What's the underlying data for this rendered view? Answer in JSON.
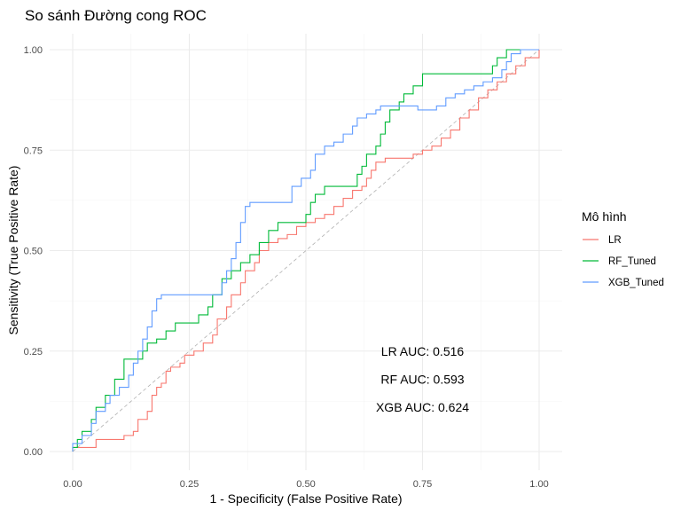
{
  "chart_data": {
    "type": "line",
    "title": "So sánh Đường cong ROC",
    "xlabel": "1 - Specificity (False Positive Rate)",
    "ylabel": "Sensitivity (True Positive Rate)",
    "xlim": [
      0,
      1
    ],
    "ylim": [
      0,
      1
    ],
    "x_ticks": [
      "0.00",
      "0.25",
      "0.50",
      "0.75",
      "1.00"
    ],
    "y_ticks": [
      "0.00",
      "0.25",
      "0.50",
      "0.75",
      "1.00"
    ],
    "grid": true,
    "legend": {
      "title": "Mô hình",
      "position": "right"
    },
    "reference_line": {
      "from": [
        0,
        0
      ],
      "to": [
        1,
        1
      ],
      "style": "dashed"
    },
    "series": [
      {
        "name": "LR",
        "color": "#F8766D",
        "points": [
          [
            0,
            0
          ],
          [
            0,
            0.01
          ],
          [
            0.05,
            0.01
          ],
          [
            0.05,
            0.03
          ],
          [
            0.1,
            0.03
          ],
          [
            0.11,
            0.04
          ],
          [
            0.13,
            0.05
          ],
          [
            0.14,
            0.08
          ],
          [
            0.16,
            0.1
          ],
          [
            0.17,
            0.14
          ],
          [
            0.18,
            0.16
          ],
          [
            0.19,
            0.17
          ],
          [
            0.2,
            0.2
          ],
          [
            0.21,
            0.21
          ],
          [
            0.23,
            0.22
          ],
          [
            0.24,
            0.24
          ],
          [
            0.26,
            0.25
          ],
          [
            0.28,
            0.27
          ],
          [
            0.3,
            0.29
          ],
          [
            0.31,
            0.33
          ],
          [
            0.33,
            0.36
          ],
          [
            0.34,
            0.39
          ],
          [
            0.36,
            0.42
          ],
          [
            0.37,
            0.45
          ],
          [
            0.39,
            0.47
          ],
          [
            0.4,
            0.5
          ],
          [
            0.42,
            0.52
          ],
          [
            0.44,
            0.53
          ],
          [
            0.46,
            0.54
          ],
          [
            0.48,
            0.56
          ],
          [
            0.5,
            0.57
          ],
          [
            0.52,
            0.58
          ],
          [
            0.54,
            0.59
          ],
          [
            0.56,
            0.61
          ],
          [
            0.58,
            0.63
          ],
          [
            0.6,
            0.65
          ],
          [
            0.62,
            0.66
          ],
          [
            0.63,
            0.68
          ],
          [
            0.64,
            0.7
          ],
          [
            0.65,
            0.72
          ],
          [
            0.67,
            0.73
          ],
          [
            0.7,
            0.73
          ],
          [
            0.73,
            0.74
          ],
          [
            0.75,
            0.75
          ],
          [
            0.77,
            0.76
          ],
          [
            0.79,
            0.78
          ],
          [
            0.81,
            0.8
          ],
          [
            0.83,
            0.83
          ],
          [
            0.85,
            0.85
          ],
          [
            0.87,
            0.88
          ],
          [
            0.89,
            0.9
          ],
          [
            0.91,
            0.92
          ],
          [
            0.93,
            0.94
          ],
          [
            0.95,
            0.96
          ],
          [
            0.97,
            0.98
          ],
          [
            1,
            0.99
          ],
          [
            1,
            1
          ]
        ]
      },
      {
        "name": "RF_Tuned",
        "color": "#00BA38",
        "points": [
          [
            0,
            0
          ],
          [
            0,
            0.01
          ],
          [
            0.01,
            0.03
          ],
          [
            0.02,
            0.05
          ],
          [
            0.04,
            0.08
          ],
          [
            0.05,
            0.11
          ],
          [
            0.07,
            0.14
          ],
          [
            0.09,
            0.18
          ],
          [
            0.11,
            0.23
          ],
          [
            0.13,
            0.23
          ],
          [
            0.15,
            0.25
          ],
          [
            0.16,
            0.27
          ],
          [
            0.18,
            0.28
          ],
          [
            0.2,
            0.3
          ],
          [
            0.22,
            0.32
          ],
          [
            0.25,
            0.32
          ],
          [
            0.27,
            0.34
          ],
          [
            0.29,
            0.36
          ],
          [
            0.3,
            0.39
          ],
          [
            0.32,
            0.43
          ],
          [
            0.34,
            0.45
          ],
          [
            0.36,
            0.47
          ],
          [
            0.38,
            0.49
          ],
          [
            0.4,
            0.52
          ],
          [
            0.42,
            0.55
          ],
          [
            0.44,
            0.57
          ],
          [
            0.48,
            0.57
          ],
          [
            0.5,
            0.59
          ],
          [
            0.51,
            0.62
          ],
          [
            0.52,
            0.64
          ],
          [
            0.54,
            0.66
          ],
          [
            0.6,
            0.66
          ],
          [
            0.61,
            0.69
          ],
          [
            0.62,
            0.71
          ],
          [
            0.63,
            0.74
          ],
          [
            0.65,
            0.76
          ],
          [
            0.66,
            0.79
          ],
          [
            0.67,
            0.82
          ],
          [
            0.68,
            0.85
          ],
          [
            0.7,
            0.87
          ],
          [
            0.71,
            0.89
          ],
          [
            0.73,
            0.91
          ],
          [
            0.75,
            0.94
          ],
          [
            0.89,
            0.94
          ],
          [
            0.9,
            0.96
          ],
          [
            0.91,
            0.98
          ],
          [
            0.93,
            1
          ],
          [
            1,
            1
          ]
        ]
      },
      {
        "name": "XGB_Tuned",
        "color": "#619CFF",
        "points": [
          [
            0,
            0
          ],
          [
            0,
            0.02
          ],
          [
            0.02,
            0.04
          ],
          [
            0.04,
            0.07
          ],
          [
            0.05,
            0.1
          ],
          [
            0.07,
            0.12
          ],
          [
            0.08,
            0.14
          ],
          [
            0.1,
            0.16
          ],
          [
            0.12,
            0.19
          ],
          [
            0.13,
            0.22
          ],
          [
            0.14,
            0.25
          ],
          [
            0.15,
            0.28
          ],
          [
            0.16,
            0.31
          ],
          [
            0.17,
            0.35
          ],
          [
            0.18,
            0.38
          ],
          [
            0.19,
            0.39
          ],
          [
            0.3,
            0.39
          ],
          [
            0.32,
            0.42
          ],
          [
            0.33,
            0.45
          ],
          [
            0.34,
            0.48
          ],
          [
            0.35,
            0.52
          ],
          [
            0.36,
            0.57
          ],
          [
            0.37,
            0.61
          ],
          [
            0.38,
            0.62
          ],
          [
            0.46,
            0.62
          ],
          [
            0.47,
            0.66
          ],
          [
            0.49,
            0.68
          ],
          [
            0.51,
            0.7
          ],
          [
            0.52,
            0.74
          ],
          [
            0.54,
            0.76
          ],
          [
            0.56,
            0.77
          ],
          [
            0.58,
            0.79
          ],
          [
            0.6,
            0.81
          ],
          [
            0.61,
            0.83
          ],
          [
            0.63,
            0.84
          ],
          [
            0.65,
            0.85
          ],
          [
            0.66,
            0.86
          ],
          [
            0.72,
            0.86
          ],
          [
            0.74,
            0.85
          ],
          [
            0.76,
            0.85
          ],
          [
            0.78,
            0.86
          ],
          [
            0.8,
            0.88
          ],
          [
            0.82,
            0.89
          ],
          [
            0.84,
            0.9
          ],
          [
            0.86,
            0.91
          ],
          [
            0.88,
            0.92
          ],
          [
            0.9,
            0.93
          ],
          [
            0.92,
            0.95
          ],
          [
            0.93,
            0.97
          ],
          [
            0.94,
            0.99
          ],
          [
            0.96,
            1
          ],
          [
            1,
            1
          ]
        ]
      }
    ],
    "annotations": [
      {
        "text": "LR AUC: 0.516"
      },
      {
        "text": "RF AUC: 0.593"
      },
      {
        "text": "XGB AUC: 0.624"
      }
    ]
  }
}
